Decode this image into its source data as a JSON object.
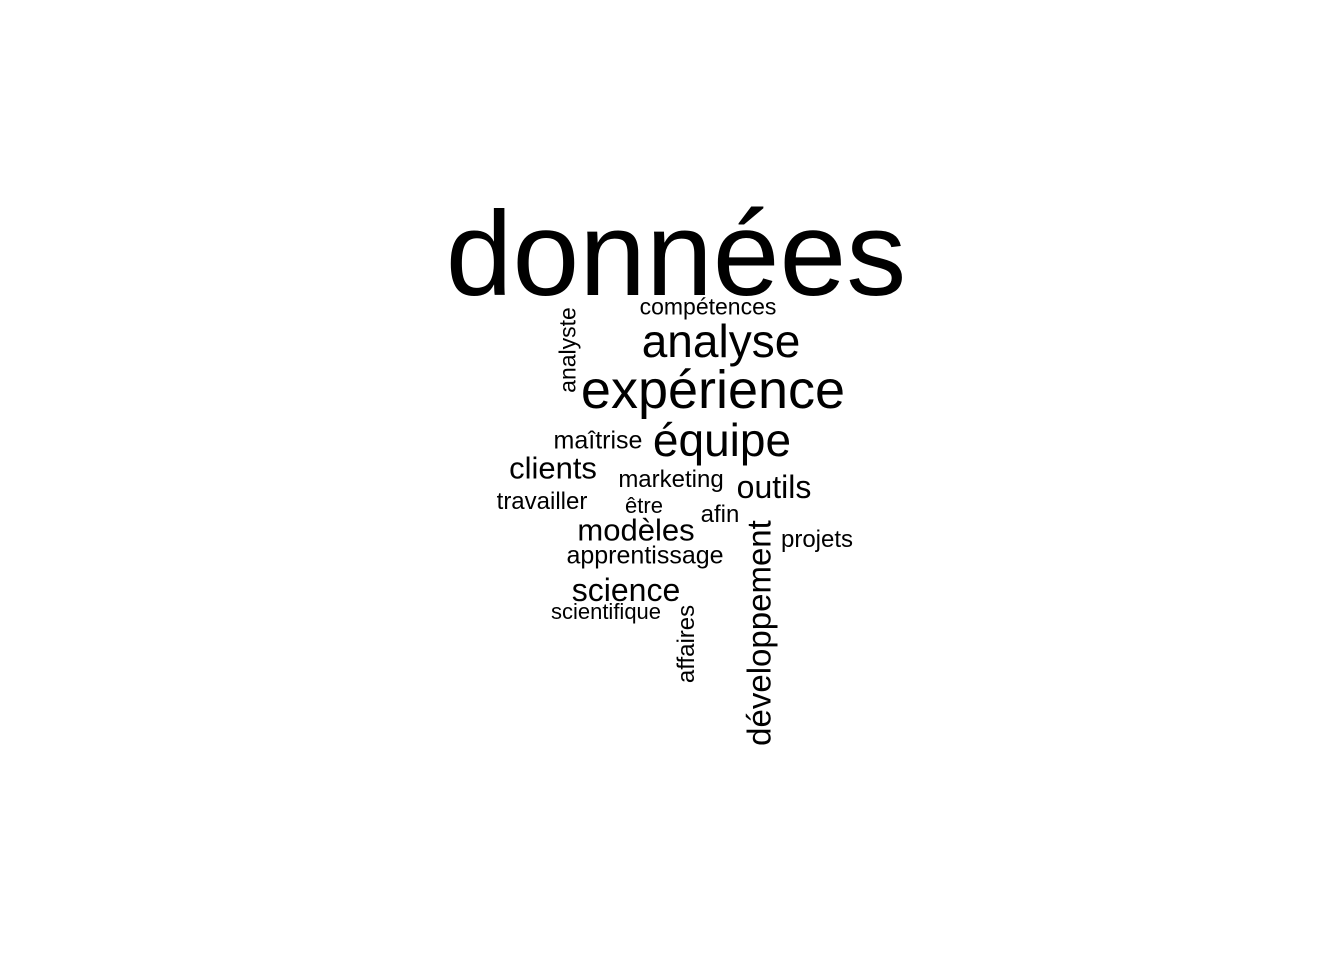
{
  "chart_data": {
    "type": "wordcloud",
    "text_color": "#000000",
    "background": "#ffffff",
    "words": [
      {
        "text": "données",
        "weight": 100
      },
      {
        "text": "expérience",
        "weight": 46
      },
      {
        "text": "analyse",
        "weight": 40
      },
      {
        "text": "équipe",
        "weight": 40
      },
      {
        "text": "développement",
        "weight": 31
      },
      {
        "text": "outils",
        "weight": 30
      },
      {
        "text": "science",
        "weight": 30
      },
      {
        "text": "modèles",
        "weight": 29
      },
      {
        "text": "clients",
        "weight": 29
      },
      {
        "text": "affaires",
        "weight": 24
      },
      {
        "text": "apprentissage",
        "weight": 24
      },
      {
        "text": "maîtrise",
        "weight": 24
      },
      {
        "text": "marketing",
        "weight": 23
      },
      {
        "text": "afin",
        "weight": 23
      },
      {
        "text": "travailler",
        "weight": 23
      },
      {
        "text": "projets",
        "weight": 23
      },
      {
        "text": "analyste",
        "weight": 22
      },
      {
        "text": "compétences",
        "weight": 21
      },
      {
        "text": "être",
        "weight": 21
      },
      {
        "text": "scientifique",
        "weight": 21
      }
    ]
  }
}
